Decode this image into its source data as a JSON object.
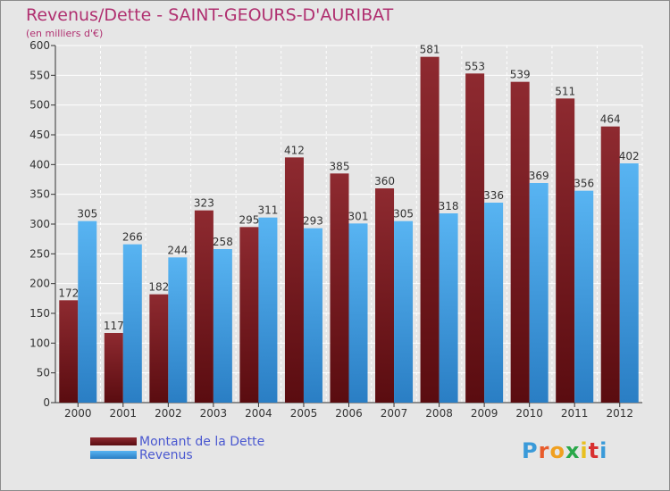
{
  "chart_data": {
    "type": "bar",
    "title": "Revenus/Dette - SAINT-GEOURS-D'AURIBAT",
    "subtitle": "(en milliers d'€)",
    "categories": [
      "2000",
      "2001",
      "2002",
      "2003",
      "2004",
      "2005",
      "2006",
      "2007",
      "2008",
      "2009",
      "2010",
      "2011",
      "2012"
    ],
    "series": [
      {
        "name": "Montant de la Dette",
        "color": "#7a1e22",
        "values": [
          172,
          117,
          182,
          323,
          295,
          412,
          385,
          360,
          581,
          553,
          539,
          511,
          464
        ]
      },
      {
        "name": "Revenus",
        "color": "#3b9be3",
        "values": [
          305,
          266,
          244,
          258,
          311,
          293,
          301,
          305,
          318,
          336,
          369,
          356,
          402
        ]
      }
    ],
    "ylim": [
      0,
      600
    ],
    "yticks": [
      0,
      50,
      100,
      150,
      200,
      250,
      300,
      350,
      400,
      450,
      500,
      550,
      600
    ],
    "grid": true,
    "legend": "bottom-left"
  },
  "logo": {
    "letters": [
      "P",
      "r",
      "o",
      "x",
      "i",
      "t",
      "i"
    ],
    "colors": [
      "#3a9ad9",
      "#e85c2c",
      "#f0a020",
      "#2aa84a",
      "#e8c020",
      "#d83030",
      "#3a9ad9"
    ]
  }
}
